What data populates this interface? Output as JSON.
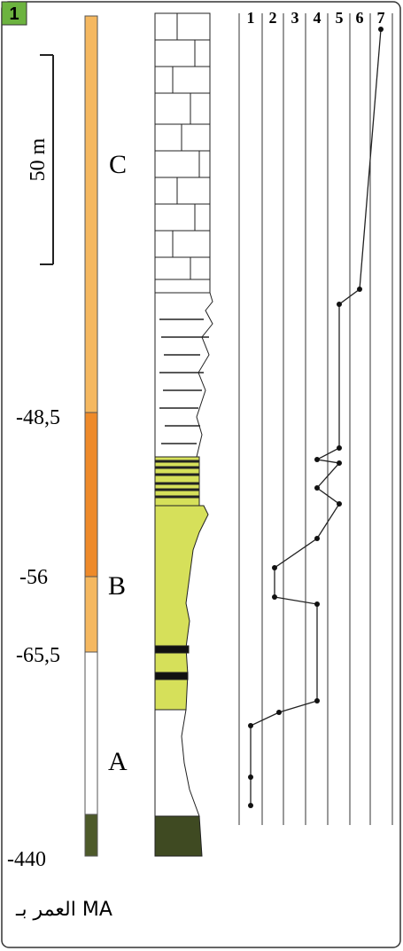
{
  "badge": "1",
  "scale": {
    "label": "50 m"
  },
  "stages": [
    "C",
    "B",
    "A"
  ],
  "ages": [
    "-48,5",
    "-56",
    "-65,5",
    "-440"
  ],
  "columns": [
    "1",
    "2",
    "3",
    "4",
    "5",
    "6",
    "7"
  ],
  "age_unit": "العمر بـ MA"
}
